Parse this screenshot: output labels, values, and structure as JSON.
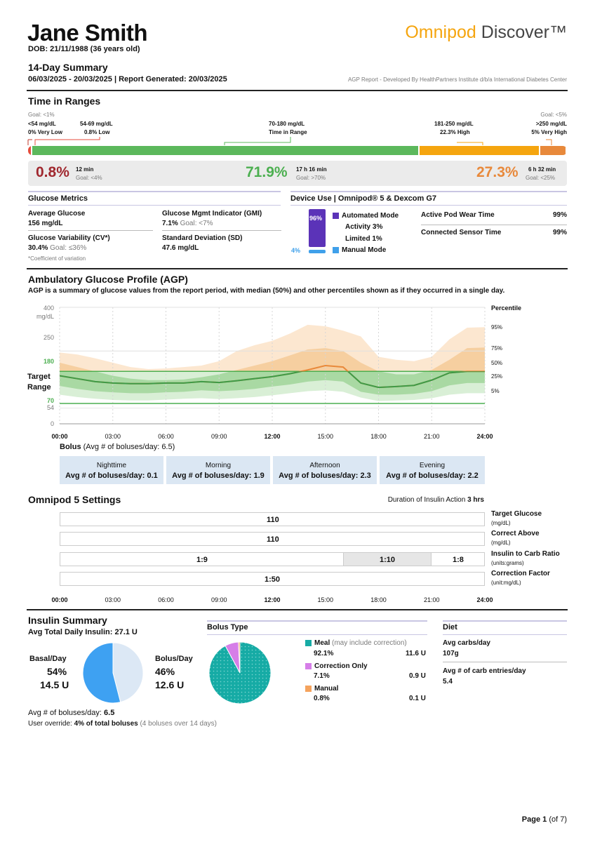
{
  "header": {
    "patient_name": "Jane Smith",
    "dob": "DOB: 21/11/1988 (36 years old)",
    "brand_part1": "Omnipod",
    "brand_part2": " Discover™",
    "summary_title": "14-Day Summary",
    "dates": "06/03/2025 - 20/03/2025 | Report Generated: 20/03/2025",
    "agp_credit": "AGP Report - Developed By HealthPartners Institute d/b/a International Diabetes Center"
  },
  "time_in_ranges": {
    "title": "Time in Ranges",
    "labels": {
      "very_low_goal": "Goal: <1%",
      "very_low_range": "<54 mg/dL",
      "very_low": "0% Very Low",
      "low_range": "54-69 mg/dL",
      "low": "0.8% Low",
      "in_range_range": "70-180 mg/dL",
      "in_range": "Time in Range",
      "high_range": "181-250 mg/dL",
      "high": "22.3% High",
      "very_high_goal": "Goal: <5%",
      "very_high_range": ">250 mg/dL",
      "very_high": "5% Very High"
    },
    "bar_segments": [
      {
        "name": "very-low",
        "pct": 0.0,
        "color": "#c0392b"
      },
      {
        "name": "low",
        "pct": 0.8,
        "color": "#e74c3c"
      },
      {
        "name": "in-range",
        "pct": 71.9,
        "color": "#5cb85c"
      },
      {
        "name": "high",
        "pct": 22.3,
        "color": "#f5a50f"
      },
      {
        "name": "very-high",
        "pct": 5.0,
        "color": "#e8893b"
      }
    ],
    "summary": {
      "low_pct": "0.8%",
      "low_time": "12 min",
      "low_goal": "Goal: <4%",
      "in_pct": "71.9%",
      "in_time": "17 h 16 min",
      "in_goal": "Goal: >70%",
      "high_pct": "27.3%",
      "high_time": "6 h 32 min",
      "high_goal": "Goal: <25%"
    }
  },
  "glucose_metrics": {
    "title": "Glucose Metrics",
    "avg_label": "Average Glucose",
    "avg_value": "156 mg/dL",
    "gmi_label": "Glucose Mgmt Indicator (GMI)",
    "gmi_value": "7.1%",
    "gmi_goal": "Goal: <7%",
    "cv_label": "Glucose Variability (CV*)",
    "cv_value": "30.4%",
    "cv_goal": "Goal: ≤36%",
    "sd_label": "Standard Deviation (SD)",
    "sd_value": "47.6 mg/dL",
    "footnote": "*Coefficient of variation"
  },
  "device_use": {
    "title": "Device Use | Omnipod® 5 & Dexcom G7",
    "auto_pct": "96%",
    "manual_pct": "4%",
    "auto_label": "Automated Mode",
    "activity": "Activity 3%",
    "limited": "Limited 1%",
    "manual_label": "Manual Mode",
    "pod_label": "Active Pod Wear Time",
    "pod_value": "99%",
    "sensor_label": "Connected Sensor Time",
    "sensor_value": "99%",
    "colors": {
      "auto": "#5b33b8",
      "manual": "#3fa0ea"
    }
  },
  "agp": {
    "title": "Ambulatory Glucose Profile (AGP)",
    "subtitle": "AGP is a summary of glucose values from the report period, with median (50%) and other percentiles shown as if they occurred in a single day.",
    "y_ticks": [
      "400",
      "250",
      "180",
      "70",
      "54",
      "0"
    ],
    "y_unit": "mg/dL",
    "target_label": "Target Range",
    "percentile_title": "Percentile",
    "percentiles": [
      "95%",
      "75%",
      "50%",
      "25%",
      "5%"
    ],
    "x_ticks": [
      "00:00",
      "03:00",
      "06:00",
      "09:00",
      "12:00",
      "15:00",
      "18:00",
      "21:00",
      "24:00"
    ]
  },
  "chart_data": {
    "type": "area",
    "ylabel": "mg/dL",
    "ylim": [
      0,
      400
    ],
    "target_range": [
      70,
      180
    ],
    "x": [
      0,
      1,
      2,
      3,
      4,
      5,
      6,
      7,
      8,
      9,
      10,
      11,
      12,
      13,
      14,
      15,
      16,
      17,
      18,
      19,
      20,
      21,
      22,
      23,
      24
    ],
    "series": [
      {
        "name": "95%",
        "values": [
          245,
          238,
          225,
          210,
          195,
          188,
          190,
          195,
          200,
          215,
          250,
          270,
          285,
          310,
          340,
          335,
          320,
          300,
          230,
          220,
          215,
          230,
          290,
          330,
          332
        ]
      },
      {
        "name": "75%",
        "values": [
          210,
          195,
          180,
          165,
          155,
          150,
          150,
          152,
          160,
          170,
          185,
          200,
          215,
          235,
          255,
          260,
          250,
          210,
          180,
          170,
          170,
          185,
          220,
          260,
          262
        ]
      },
      {
        "name": "50%",
        "values": [
          165,
          155,
          145,
          140,
          138,
          138,
          140,
          140,
          145,
          142,
          148,
          155,
          162,
          172,
          185,
          200,
          195,
          140,
          125,
          128,
          132,
          150,
          175,
          180,
          180
        ]
      },
      {
        "name": "25%",
        "values": [
          130,
          120,
          112,
          108,
          105,
          105,
          108,
          110,
          115,
          112,
          115,
          120,
          128,
          135,
          145,
          150,
          145,
          110,
          100,
          100,
          103,
          112,
          132,
          140,
          140
        ]
      },
      {
        "name": "5%",
        "values": [
          100,
          92,
          86,
          82,
          80,
          80,
          83,
          86,
          88,
          85,
          88,
          92,
          98,
          105,
          112,
          115,
          110,
          90,
          78,
          80,
          82,
          88,
          100,
          105,
          105
        ]
      }
    ]
  },
  "bolus": {
    "label": "Bolus",
    "avg_text": " (Avg # of boluses/day: 6.5)",
    "periods": [
      {
        "name": "Nighttime",
        "value": "Avg # of boluses/day: 0.1"
      },
      {
        "name": "Morning",
        "value": "Avg # of boluses/day: 1.9"
      },
      {
        "name": "Afternoon",
        "value": "Avg # of boluses/day: 2.3"
      },
      {
        "name": "Evening",
        "value": "Avg # of boluses/day: 2.2"
      }
    ]
  },
  "settings": {
    "title": "Omnipod 5 Settings",
    "dia_label": "Duration of Insulin Action ",
    "dia_value": "3 hrs",
    "target_value": "110",
    "correct_above_value": "110",
    "icr_1": "1:9",
    "icr_2": "1:10",
    "icr_3": "1:8",
    "cf_value": "1:50",
    "target_label": "Target Glucose",
    "target_unit": "(mg/dL)",
    "correct_label": "Correct Above",
    "correct_unit": "(mg/dL)",
    "icr_label": "Insulin to Carb Ratio",
    "icr_unit": "(units:grams)",
    "cf_label": "Correction Factor",
    "cf_unit": "(unit:mg/dL)",
    "x_ticks": [
      "00:00",
      "03:00",
      "06:00",
      "09:00",
      "12:00",
      "15:00",
      "18:00",
      "21:00",
      "24:00"
    ]
  },
  "insulin_summary": {
    "title": "Insulin Summary",
    "total_label": "Avg Total Daily Insulin: ",
    "total_value": "27.1 U",
    "basal_label": "Basal/Day",
    "basal_pct": "54%",
    "basal_u": "14.5 U",
    "bolus_label": "Bolus/Day",
    "bolus_pct": "46%",
    "bolus_u": "12.6 U",
    "avg_boluses_label": "Avg # of boluses/day: ",
    "avg_boluses_value": "6.5",
    "override_label": "User override: ",
    "override_value": "4% of total boluses",
    "override_note": " (4 boluses over 14 days)",
    "basal_fraction": 0.54,
    "colors": {
      "basal": "#3ea1f2",
      "bolus": "#dce8f5"
    }
  },
  "bolus_type": {
    "title": "Bolus Type",
    "meal_label": "Meal",
    "meal_note": " (may include correction)",
    "meal_pct": "92.1%",
    "meal_u": "11.6 U",
    "corr_label": "Correction Only",
    "corr_pct": "7.1%",
    "corr_u": "0.9 U",
    "manual_label": "Manual",
    "manual_pct": "0.8%",
    "manual_u": "0.1 U",
    "fractions": {
      "meal": 0.921,
      "correction": 0.071,
      "manual": 0.008
    },
    "colors": {
      "meal": "#16aba5",
      "correction": "#d67ee8",
      "manual": "#f5a35d"
    }
  },
  "diet": {
    "title": "Diet",
    "carbs_label": "Avg carbs/day",
    "carbs_value": "107g",
    "entries_label": "Avg # of carb entries/day",
    "entries_value": "5.4"
  },
  "footer": {
    "page": "Page 1",
    "of": " (of 7)"
  }
}
